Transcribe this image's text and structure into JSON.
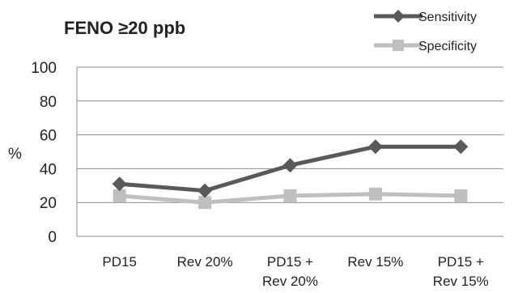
{
  "chart_data": {
    "type": "line",
    "title": "FENO ≥20 ppb",
    "ylabel": "%",
    "xlabel": "",
    "ylim": [
      0,
      100
    ],
    "yticks": [
      0,
      20,
      40,
      60,
      80,
      100
    ],
    "grid": true,
    "legend_position": "top-right",
    "categories": [
      [
        "PD15"
      ],
      [
        "Rev 20%"
      ],
      [
        "PD15 +",
        "Rev 20%"
      ],
      [
        "Rev 15%"
      ],
      [
        "PD15 +",
        "Rev 15%"
      ]
    ],
    "series": [
      {
        "name": "Sensitivity",
        "values": [
          31,
          27,
          42,
          53,
          53
        ],
        "color": "#595959",
        "marker": "diamond"
      },
      {
        "name": "Specificity",
        "values": [
          24,
          20,
          24,
          25,
          24
        ],
        "color": "#bfbfbf",
        "marker": "square"
      }
    ]
  }
}
